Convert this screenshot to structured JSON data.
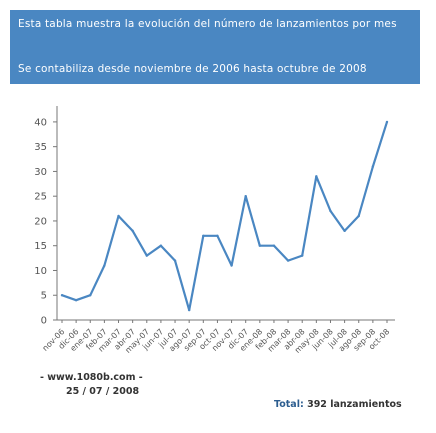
{
  "header": {
    "description": "Esta tabla muestra la evolución del número de lanzamientos por mes",
    "range": "Se contabiliza desde noviembre de 2006 hasta octubre de 2008"
  },
  "footer": {
    "site": "- www.1080b.com -",
    "date": "25 / 07 / 2008",
    "total_label": "Total:",
    "total_value": "392 lanzamientos"
  },
  "colors": {
    "header_bg": "#4a87c2",
    "line": "#4a87c2",
    "tick_label": "#555555"
  },
  "chart_data": {
    "type": "line",
    "title": "",
    "xlabel": "",
    "ylabel": "",
    "ylim": [
      0,
      42
    ],
    "yticks": [
      0,
      5,
      10,
      15,
      20,
      25,
      30,
      35,
      40
    ],
    "grid": false,
    "categories": [
      "nov-06",
      "dic-06",
      "ene-07",
      "feb-07",
      "mar-07",
      "abr-07",
      "may-07",
      "jun-07",
      "jul-07",
      "ago-07",
      "sep-07",
      "oct-07",
      "nov-07",
      "dic-07",
      "ene-08",
      "feb-08",
      "mar-08",
      "abr-08",
      "may-08",
      "jun-08",
      "jul-08",
      "ago-08",
      "sep-08",
      "oct-08"
    ],
    "series": [
      {
        "values": [
          5,
          4,
          5,
          11,
          21,
          18,
          13,
          15,
          12,
          2,
          17,
          17,
          11,
          25,
          15,
          15,
          12,
          13,
          29,
          22,
          18,
          21,
          31,
          40
        ]
      }
    ]
  }
}
